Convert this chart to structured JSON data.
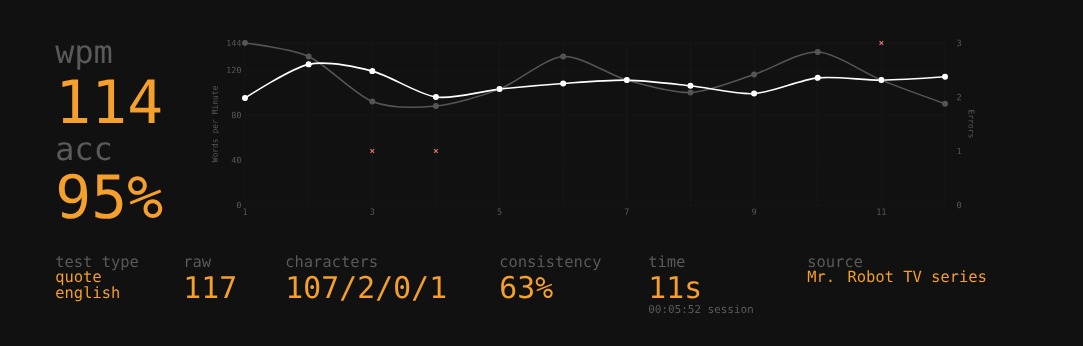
{
  "chart_data": {
    "type": "line",
    "x": [
      1,
      2,
      3,
      4,
      5,
      6,
      7,
      8,
      9,
      10,
      11,
      12
    ],
    "xlim": [
      1,
      12
    ],
    "xticks": [
      1,
      {
        "value": 2,
        "label": null
      },
      3,
      {
        "value": 4,
        "label": null
      },
      5,
      {
        "value": 6,
        "label": null
      },
      7,
      {
        "value": 8,
        "label": null
      },
      9,
      {
        "value": 10,
        "label": null
      },
      11,
      {
        "value": 12,
        "label": null
      }
    ],
    "ylim": [
      0,
      144
    ],
    "yticks": [
      0,
      40,
      80,
      120,
      144
    ],
    "y2lim": [
      0,
      3
    ],
    "y2ticks": [
      0,
      1,
      2,
      3
    ],
    "ylabel": "Words per Minute",
    "y2label": "Errors",
    "grid": true,
    "marker": "circle",
    "series": [
      {
        "color": "#555555",
        "values": [
          144,
          132,
          92,
          88,
          103,
          132,
          111,
          100,
          116,
          136,
          111,
          90
        ]
      },
      {
        "color": "#ffffff",
        "values": [
          95,
          125,
          119,
          96,
          103,
          108,
          111,
          106,
          99,
          113,
          111,
          114
        ]
      },
      {
        "type": "scatter",
        "marker": "cross",
        "axis": "y2",
        "color": "#e06c6c",
        "values": [
          null,
          null,
          1,
          1,
          null,
          null,
          null,
          null,
          null,
          null,
          3,
          null
        ]
      }
    ],
    "annotations": [
      "wpm",
      "114",
      "acc",
      "95%",
      "test type",
      "quote",
      "english",
      "raw",
      "117",
      "characters",
      "107/2/0/1",
      "consistency",
      "63%",
      "time",
      "11s",
      "00:05:52 session",
      "source",
      "Mr. Robot TV series"
    ]
  }
}
